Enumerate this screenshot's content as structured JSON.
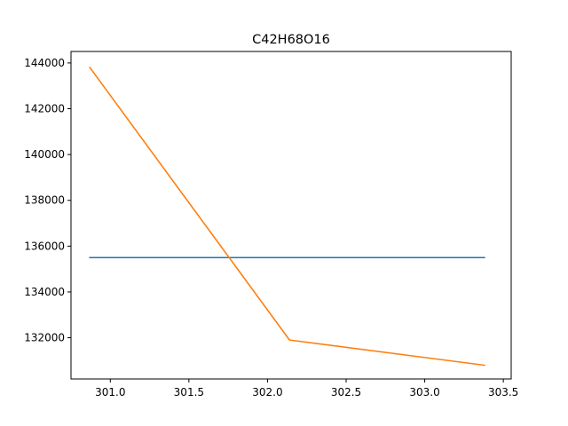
{
  "chart_data": {
    "type": "line",
    "title": "C42H68O16",
    "xlabel": "",
    "ylabel": "",
    "xlim": [
      300.75,
      303.55
    ],
    "ylim": [
      130200,
      144500
    ],
    "grid": false,
    "legend": "none",
    "xticks": [
      301.0,
      301.5,
      302.0,
      302.5,
      303.0,
      303.5
    ],
    "xtick_labels": [
      "301.0",
      "301.5",
      "302.0",
      "302.5",
      "303.0",
      "303.5"
    ],
    "yticks": [
      132000,
      134000,
      136000,
      138000,
      140000,
      142000,
      144000
    ],
    "ytick_labels": [
      "132000",
      "134000",
      "136000",
      "138000",
      "140000",
      "142000",
      "144000"
    ],
    "series": [
      {
        "color": "#1f77b4",
        "x": [
          300.87,
          303.38
        ],
        "y": [
          135500,
          135500
        ]
      },
      {
        "color": "#ff7f0e",
        "x": [
          300.87,
          302.14,
          303.38
        ],
        "y": [
          143800,
          131900,
          130800
        ]
      }
    ]
  }
}
